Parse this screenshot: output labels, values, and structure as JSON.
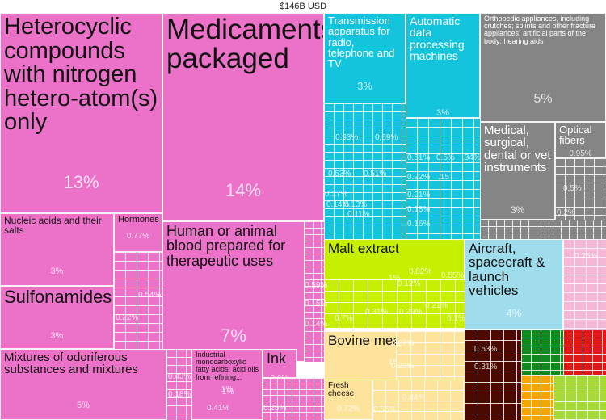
{
  "chart_data": {
    "type": "treemap",
    "title": "$146B USD",
    "items": [
      {
        "label": "Heterocyclic compounds with nitrogen hetero-atom(s) only",
        "value": 13,
        "pct": "13%",
        "color": "#ec72c9"
      },
      {
        "label": "Medicaments, packaged",
        "value": 14,
        "pct": "14%",
        "color": "#ec72c9"
      },
      {
        "label": "Human or animal blood prepared for therapeutic uses",
        "value": 7,
        "pct": "7%",
        "color": "#ec72c9"
      },
      {
        "label": "Nucleic acids and their salts",
        "value": 3,
        "pct": "3%",
        "color": "#ec72c9"
      },
      {
        "label": "Hormones",
        "value": 0.77,
        "pct": "0.77%",
        "color": "#ec72c9"
      },
      {
        "label": "Sulfonamides",
        "value": 3,
        "pct": "3%",
        "color": "#ec72c9"
      },
      {
        "label": "Mixtures of odoriferous substances and mixtures",
        "value": 5,
        "pct": "5%",
        "color": "#ec72c9"
      },
      {
        "label": "Industrial monocarboxylic fatty acids; acid oils from refining...",
        "value": 1,
        "pct": "1%",
        "color": "#ec72c9"
      },
      {
        "label": "Ink",
        "value": 0.6,
        "pct": "0.6%",
        "color": "#ec72c9"
      },
      {
        "label": "Transmission apparatus for radio, telephone and TV",
        "value": 3,
        "pct": "3%",
        "color": "#14c3dc"
      },
      {
        "label": "Automatic data processing machines",
        "value": 3,
        "pct": "3%",
        "color": "#14c3dc"
      },
      {
        "label": "Orthopedic appliances, including crutches; splints and other fracture appliances; artificial parts of the body; hearing aids",
        "value": 5,
        "pct": "5%",
        "color": "#858585"
      },
      {
        "label": "Medical, surgical, dental or vet instruments",
        "value": 3,
        "pct": "3%",
        "color": "#858585"
      },
      {
        "label": "Optical fibers",
        "value": 0.95,
        "pct": "0.95%",
        "color": "#858585"
      },
      {
        "label": "Malt extract",
        "value": 1,
        "pct": "1%",
        "color": "#c6f000"
      },
      {
        "label": "Aircraft, spacecraft & launch vehicles",
        "value": 4,
        "pct": "4%",
        "color": "#9fdcec"
      },
      {
        "label": "Bovine meat",
        "value": 1,
        "pct": "1%",
        "color": "#fde39b"
      },
      {
        "label": "Fresh cheese",
        "value": 0.72,
        "pct": "0.72%",
        "color": "#fde39b"
      }
    ],
    "small_values": [
      "0.93%",
      "0.69%",
      "0.53%",
      "0.51%",
      "0.51%",
      "0.5%",
      ".34%",
      "0.22%",
      "0.21%",
      "0.18%",
      "0.16%",
      "0.14%",
      "0.13%",
      "0.11%",
      "0.17%",
      "0.54%",
      "0.22%",
      "0.59%",
      "0.15%",
      "0.14%",
      "0.43%",
      "0.18%",
      "0.41%",
      "0.46%",
      "0.25%",
      "0.82%",
      "0.55%",
      "0.12%",
      "0.31%",
      "0.29%",
      "0.21%",
      "0.1%",
      "0.7%",
      "0.27%",
      "0.23%",
      "0.44%",
      "0.55%",
      "0.53%",
      "0.31%",
      "0.5%",
      "0.2%",
      "0.25%",
      ".15",
      "1%"
    ]
  }
}
